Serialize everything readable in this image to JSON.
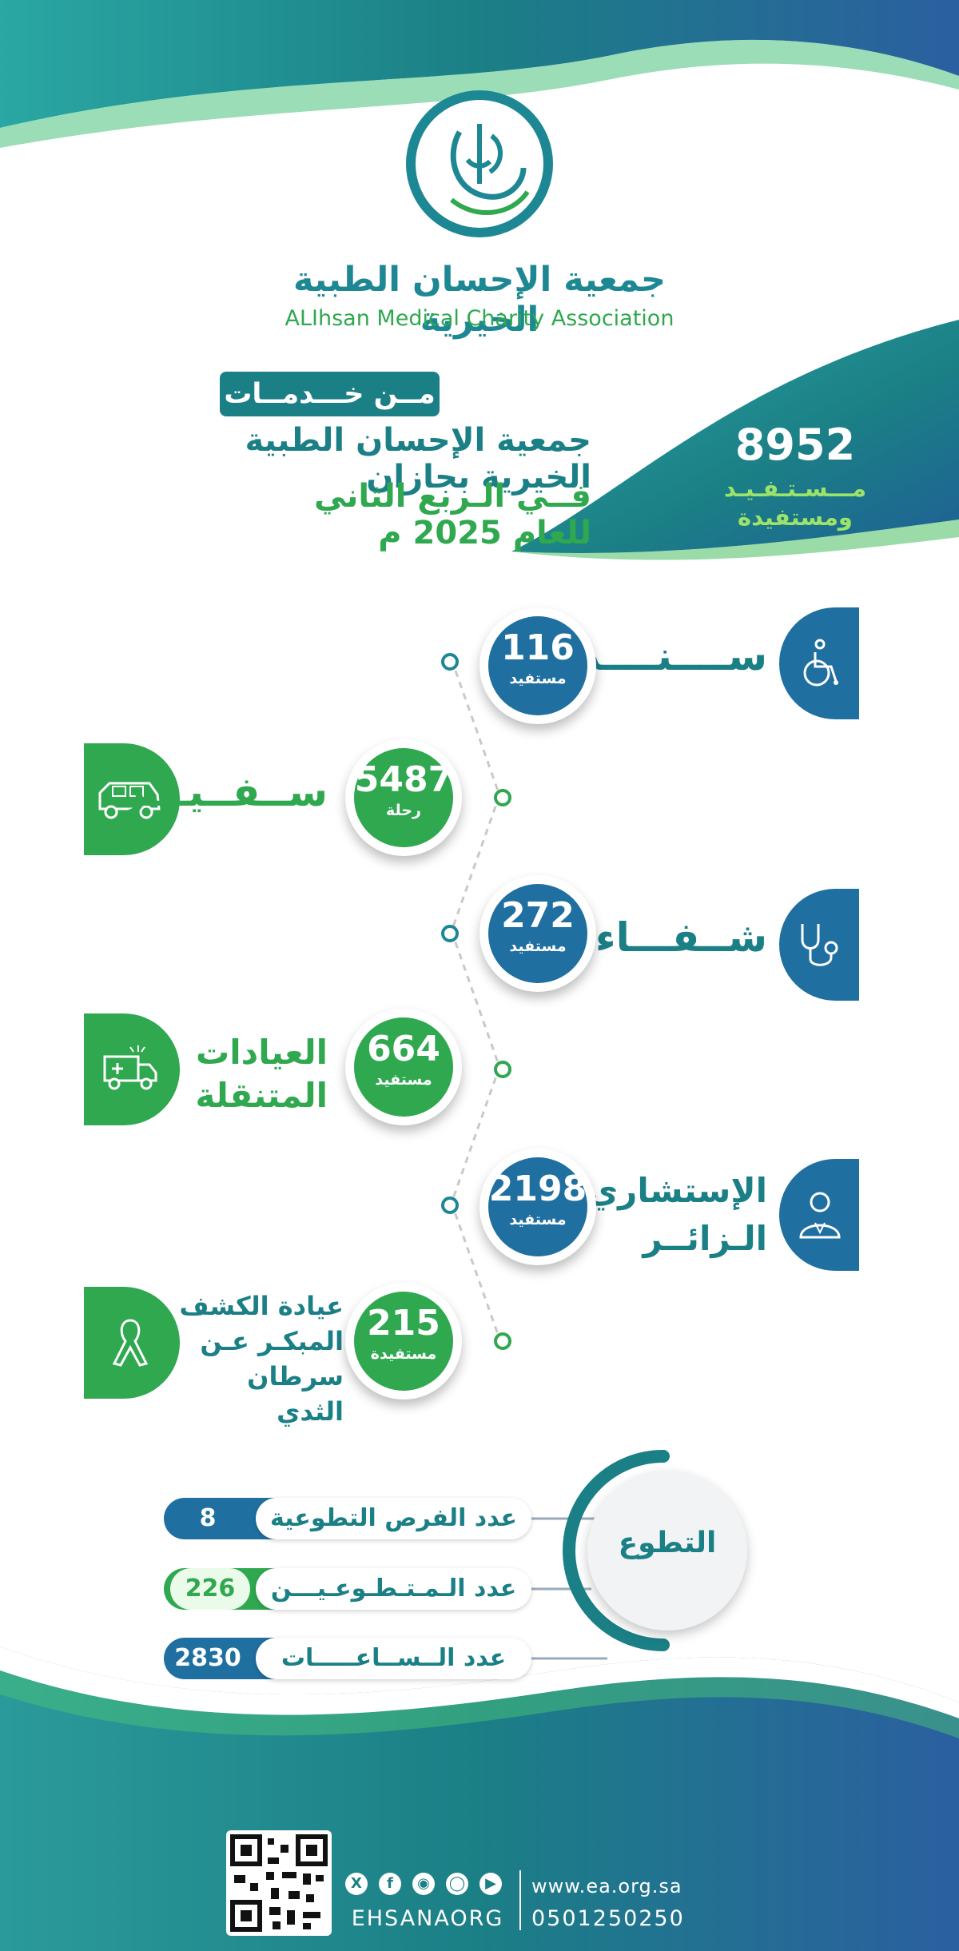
{
  "colors": {
    "teal": "#1b7f86",
    "blue": "#1f6fa0",
    "green": "#2fa84f",
    "light_green": "#9be36b"
  },
  "org": {
    "name_ar": "جمعية الإحسان الطبية الخيرية",
    "name_en": "ALIhsan Medical Charity Association"
  },
  "header": {
    "from_label": "مــن خـــدمــات",
    "line2": "جمعية الإحسان الطبية الخيرية بجازان",
    "line3": "فــي الـربع الثاني للعام 2025 م"
  },
  "total": {
    "number": "8952",
    "label_line1": "مـــسـتـفـيـد",
    "label_line2": "ومستفيدة"
  },
  "services": [
    {
      "name": "ســــنــــد",
      "number": "116",
      "unit": "مستفيد",
      "icon": "wheelchair-icon"
    },
    {
      "name": "ســفــيـــر",
      "number": "5487",
      "unit": "رحلة",
      "icon": "vehicle-icon"
    },
    {
      "name": "شــفـــاء",
      "number": "272",
      "unit": "مستفيد",
      "icon": "stethoscope-icon"
    },
    {
      "name_line1": "العيادات",
      "name_line2": "المتنقلة",
      "number": "664",
      "unit": "مستفيد",
      "icon": "ambulance-icon"
    },
    {
      "name_line1": "الإستشاري",
      "name_line2": "الـزائــر",
      "number": "2198",
      "unit": "مستفيد",
      "icon": "doctor-icon"
    },
    {
      "name_line1": "عيادة الكشف",
      "name_line2": "المبكـر عـن",
      "name_line3": "سرطان الثدي",
      "number": "215",
      "unit": "مستفيدة",
      "icon": "ribbon-icon"
    }
  ],
  "volunteering": {
    "title": "التطوع",
    "rows": [
      {
        "label": "عدد الفرص التطوعية",
        "value": "8"
      },
      {
        "label": "عدد الـمـتـطـوعـيـــن",
        "value": "226"
      },
      {
        "label": "عدد الــســاعـــــات",
        "value": "2830"
      }
    ]
  },
  "footer": {
    "website": "www.ea.org.sa",
    "phone": "0501250250",
    "handle": "EHSANAORG",
    "social_icons": [
      "x-icon",
      "facebook-icon",
      "snapchat-icon",
      "instagram-icon",
      "youtube-icon"
    ]
  }
}
